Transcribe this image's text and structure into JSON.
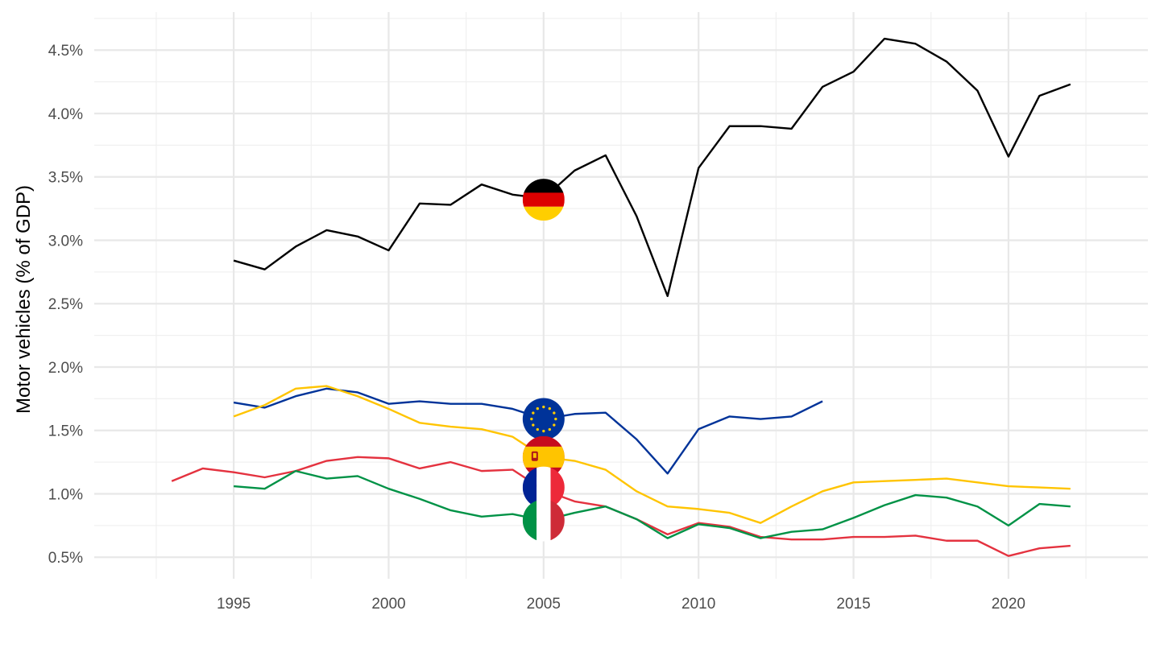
{
  "chart_data": {
    "type": "line",
    "title": "",
    "xlabel": "",
    "ylabel": "Motor vehicles (% of GDP)",
    "xlim": [
      1990.5,
      2024.5
    ],
    "ylim": [
      0.33,
      4.8
    ],
    "x_ticks": [
      1995,
      2000,
      2005,
      2010,
      2015,
      2020
    ],
    "x_tick_labels": [
      "1995",
      "2000",
      "2005",
      "2010",
      "2015",
      "2020"
    ],
    "y_ticks": [
      0.5,
      1.0,
      1.5,
      2.0,
      2.5,
      3.0,
      3.5,
      4.0,
      4.5
    ],
    "y_tick_labels": [
      "0.5%",
      "1.0%",
      "1.5%",
      "2.0%",
      "2.5%",
      "3.0%",
      "3.5%",
      "4.0%",
      "4.5%"
    ],
    "grid": true,
    "legend": "flag icons placed on each line at 2005",
    "flag_year": 2005,
    "series": [
      {
        "flag": "germany-flag",
        "color": "#000000",
        "flag_value": 3.32,
        "x": [
          1995,
          1996,
          1997,
          1998,
          1999,
          2000,
          2001,
          2002,
          2003,
          2004,
          2005,
          2006,
          2007,
          2008,
          2009,
          2010,
          2011,
          2012,
          2013,
          2014,
          2015,
          2016,
          2017,
          2018,
          2019,
          2020,
          2021,
          2022
        ],
        "values": [
          2.84,
          2.77,
          2.95,
          3.08,
          3.03,
          2.92,
          3.29,
          3.28,
          3.44,
          3.36,
          3.33,
          3.55,
          3.67,
          3.19,
          2.56,
          3.57,
          3.9,
          3.9,
          3.88,
          4.21,
          4.33,
          4.59,
          4.55,
          4.41,
          4.18,
          3.66,
          4.14,
          4.23
        ]
      },
      {
        "flag": "eu-flag",
        "color": "#003399",
        "flag_value": 1.59,
        "x": [
          1995,
          1996,
          1997,
          1998,
          1999,
          2000,
          2001,
          2002,
          2003,
          2004,
          2005,
          2006,
          2007,
          2008,
          2009,
          2010,
          2011,
          2012,
          2013,
          2014
        ],
        "values": [
          1.72,
          1.68,
          1.77,
          1.83,
          1.8,
          1.71,
          1.73,
          1.71,
          1.71,
          1.67,
          1.59,
          1.63,
          1.64,
          1.43,
          1.16,
          1.51,
          1.61,
          1.59,
          1.61,
          1.73
        ]
      },
      {
        "flag": "spain-flag",
        "color": "#FFC400",
        "flag_value": 1.29,
        "x": [
          1995,
          1996,
          1997,
          1998,
          1999,
          2000,
          2001,
          2002,
          2003,
          2004,
          2005,
          2006,
          2007,
          2008,
          2009,
          2010,
          2011,
          2012,
          2013,
          2014,
          2015,
          2016,
          2017,
          2018,
          2019,
          2020,
          2021,
          2022
        ],
        "values": [
          1.61,
          1.7,
          1.83,
          1.85,
          1.77,
          1.67,
          1.56,
          1.53,
          1.51,
          1.45,
          1.29,
          1.26,
          1.19,
          1.02,
          0.9,
          0.88,
          0.85,
          0.77,
          0.9,
          1.02,
          1.09,
          1.1,
          1.11,
          1.12,
          1.09,
          1.06,
          1.05,
          1.04
        ]
      },
      {
        "flag": "france-flag",
        "color": "#E4323F",
        "flag_value": 1.05,
        "x": [
          1993,
          1994,
          1995,
          1996,
          1997,
          1998,
          1999,
          2000,
          2001,
          2002,
          2003,
          2004,
          2005,
          2006,
          2007,
          2008,
          2009,
          2010,
          2011,
          2012,
          2013,
          2014,
          2015,
          2016,
          2017,
          2018,
          2019,
          2020,
          2021,
          2022
        ],
        "values": [
          1.1,
          1.2,
          1.17,
          1.13,
          1.18,
          1.26,
          1.29,
          1.28,
          1.2,
          1.25,
          1.18,
          1.19,
          1.03,
          0.94,
          0.9,
          0.8,
          0.68,
          0.77,
          0.74,
          0.66,
          0.64,
          0.64,
          0.66,
          0.66,
          0.67,
          0.63,
          0.63,
          0.51,
          0.57,
          0.59
        ]
      },
      {
        "flag": "italy-flag",
        "color": "#009246",
        "flag_value": 0.79,
        "x": [
          1995,
          1996,
          1997,
          1998,
          1999,
          2000,
          2001,
          2002,
          2003,
          2004,
          2005,
          2006,
          2007,
          2008,
          2009,
          2010,
          2011,
          2012,
          2013,
          2014,
          2015,
          2016,
          2017,
          2018,
          2019,
          2020,
          2021,
          2022
        ],
        "values": [
          1.06,
          1.04,
          1.18,
          1.12,
          1.14,
          1.04,
          0.96,
          0.87,
          0.82,
          0.84,
          0.79,
          0.85,
          0.9,
          0.8,
          0.65,
          0.76,
          0.73,
          0.65,
          0.7,
          0.72,
          0.81,
          0.91,
          0.99,
          0.97,
          0.9,
          0.75,
          0.92,
          0.9
        ]
      }
    ]
  }
}
